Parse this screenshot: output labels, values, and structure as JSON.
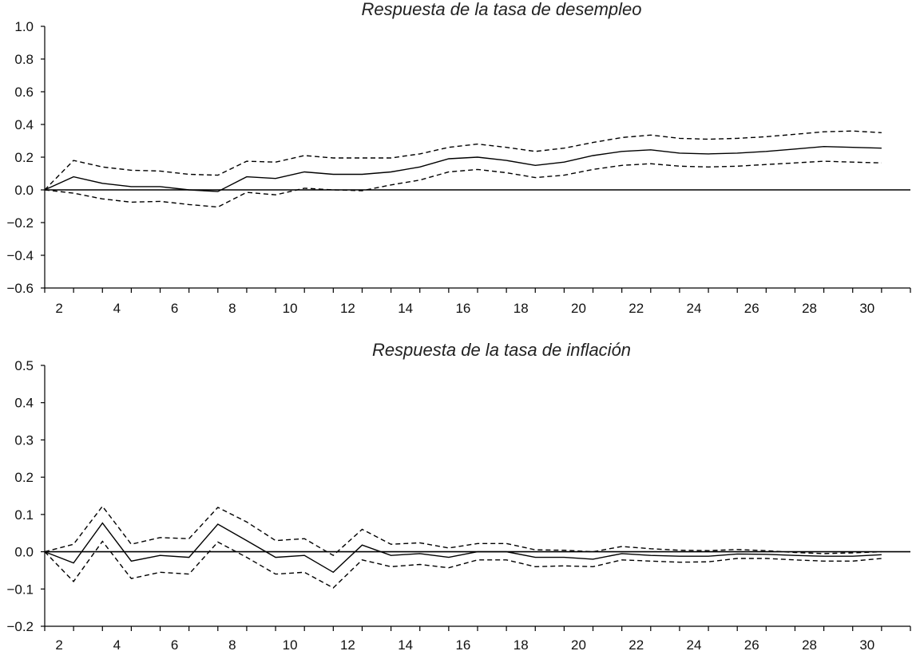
{
  "chart_data": [
    {
      "type": "line",
      "title": "Respuesta de la tasa de desempleo",
      "x": [
        1,
        2,
        3,
        4,
        5,
        6,
        7,
        8,
        9,
        10,
        11,
        12,
        13,
        14,
        15,
        16,
        17,
        18,
        19,
        20,
        21,
        22,
        23,
        24,
        25,
        26,
        27,
        28,
        29,
        30
      ],
      "xticks": [
        "2",
        "4",
        "6",
        "8",
        "10",
        "12",
        "14",
        "16",
        "18",
        "20",
        "22",
        "24",
        "26",
        "28",
        "30"
      ],
      "yticks": [
        "1.0",
        "0.8",
        "0.6",
        "0.4",
        "0.2",
        "0.0",
        "−0.2",
        "−0.4",
        "−0.6"
      ],
      "ylim": [
        -0.6,
        1.0
      ],
      "series": [
        {
          "role": "estimate",
          "style": "solid",
          "values": [
            0.0,
            0.08,
            0.04,
            0.02,
            0.02,
            0.0,
            -0.01,
            0.08,
            0.07,
            0.11,
            0.095,
            0.095,
            0.11,
            0.14,
            0.19,
            0.2,
            0.18,
            0.15,
            0.17,
            0.21,
            0.235,
            0.245,
            0.225,
            0.22,
            0.225,
            0.235,
            0.25,
            0.265,
            0.26,
            0.255
          ]
        },
        {
          "role": "upper",
          "style": "dashed",
          "values": [
            0.0,
            0.18,
            0.14,
            0.12,
            0.115,
            0.095,
            0.09,
            0.175,
            0.17,
            0.21,
            0.195,
            0.195,
            0.195,
            0.22,
            0.26,
            0.28,
            0.26,
            0.235,
            0.255,
            0.29,
            0.32,
            0.335,
            0.315,
            0.31,
            0.315,
            0.325,
            0.34,
            0.355,
            0.36,
            0.35
          ]
        },
        {
          "role": "lower",
          "style": "dashed",
          "values": [
            0.0,
            -0.02,
            -0.055,
            -0.075,
            -0.07,
            -0.09,
            -0.105,
            -0.015,
            -0.03,
            0.01,
            0.0,
            -0.005,
            0.03,
            0.06,
            0.11,
            0.125,
            0.105,
            0.075,
            0.09,
            0.125,
            0.15,
            0.16,
            0.145,
            0.14,
            0.145,
            0.155,
            0.165,
            0.175,
            0.17,
            0.165
          ]
        }
      ]
    },
    {
      "type": "line",
      "title": "Respuesta de la tasa de inflación",
      "x": [
        1,
        2,
        3,
        4,
        5,
        6,
        7,
        8,
        9,
        10,
        11,
        12,
        13,
        14,
        15,
        16,
        17,
        18,
        19,
        20,
        21,
        22,
        23,
        24,
        25,
        26,
        27,
        28,
        29,
        30
      ],
      "xticks": [
        "2",
        "4",
        "6",
        "8",
        "10",
        "12",
        "14",
        "16",
        "18",
        "20",
        "22",
        "24",
        "26",
        "28",
        "30"
      ],
      "yticks": [
        "0.5",
        "0.4",
        "0.3",
        "0.2",
        "0.1",
        "0.0",
        "−0.1",
        "−0.2"
      ],
      "ylim": [
        -0.2,
        0.5
      ],
      "series": [
        {
          "role": "estimate",
          "style": "solid",
          "values": [
            0.0,
            -0.03,
            0.077,
            -0.025,
            -0.01,
            -0.015,
            0.074,
            0.03,
            -0.015,
            -0.01,
            -0.055,
            0.018,
            -0.01,
            -0.005,
            -0.015,
            0.0,
            0.0,
            -0.015,
            -0.015,
            -0.02,
            -0.005,
            -0.01,
            -0.012,
            -0.012,
            -0.006,
            -0.007,
            -0.01,
            -0.012,
            -0.012,
            -0.008
          ]
        },
        {
          "role": "upper",
          "style": "dashed",
          "values": [
            0.0,
            0.02,
            0.122,
            0.02,
            0.038,
            0.035,
            0.119,
            0.08,
            0.03,
            0.035,
            -0.01,
            0.06,
            0.02,
            0.024,
            0.01,
            0.022,
            0.022,
            0.005,
            0.004,
            0.0,
            0.014,
            0.008,
            0.004,
            0.003,
            0.006,
            0.003,
            -0.002,
            -0.005,
            -0.003,
            0.0
          ]
        },
        {
          "role": "lower",
          "style": "dashed",
          "values": [
            0.0,
            -0.08,
            0.028,
            -0.072,
            -0.055,
            -0.06,
            0.026,
            -0.015,
            -0.06,
            -0.055,
            -0.097,
            -0.022,
            -0.04,
            -0.034,
            -0.043,
            -0.022,
            -0.022,
            -0.04,
            -0.038,
            -0.04,
            -0.022,
            -0.025,
            -0.028,
            -0.027,
            -0.018,
            -0.018,
            -0.022,
            -0.025,
            -0.025,
            -0.018
          ]
        }
      ]
    }
  ]
}
